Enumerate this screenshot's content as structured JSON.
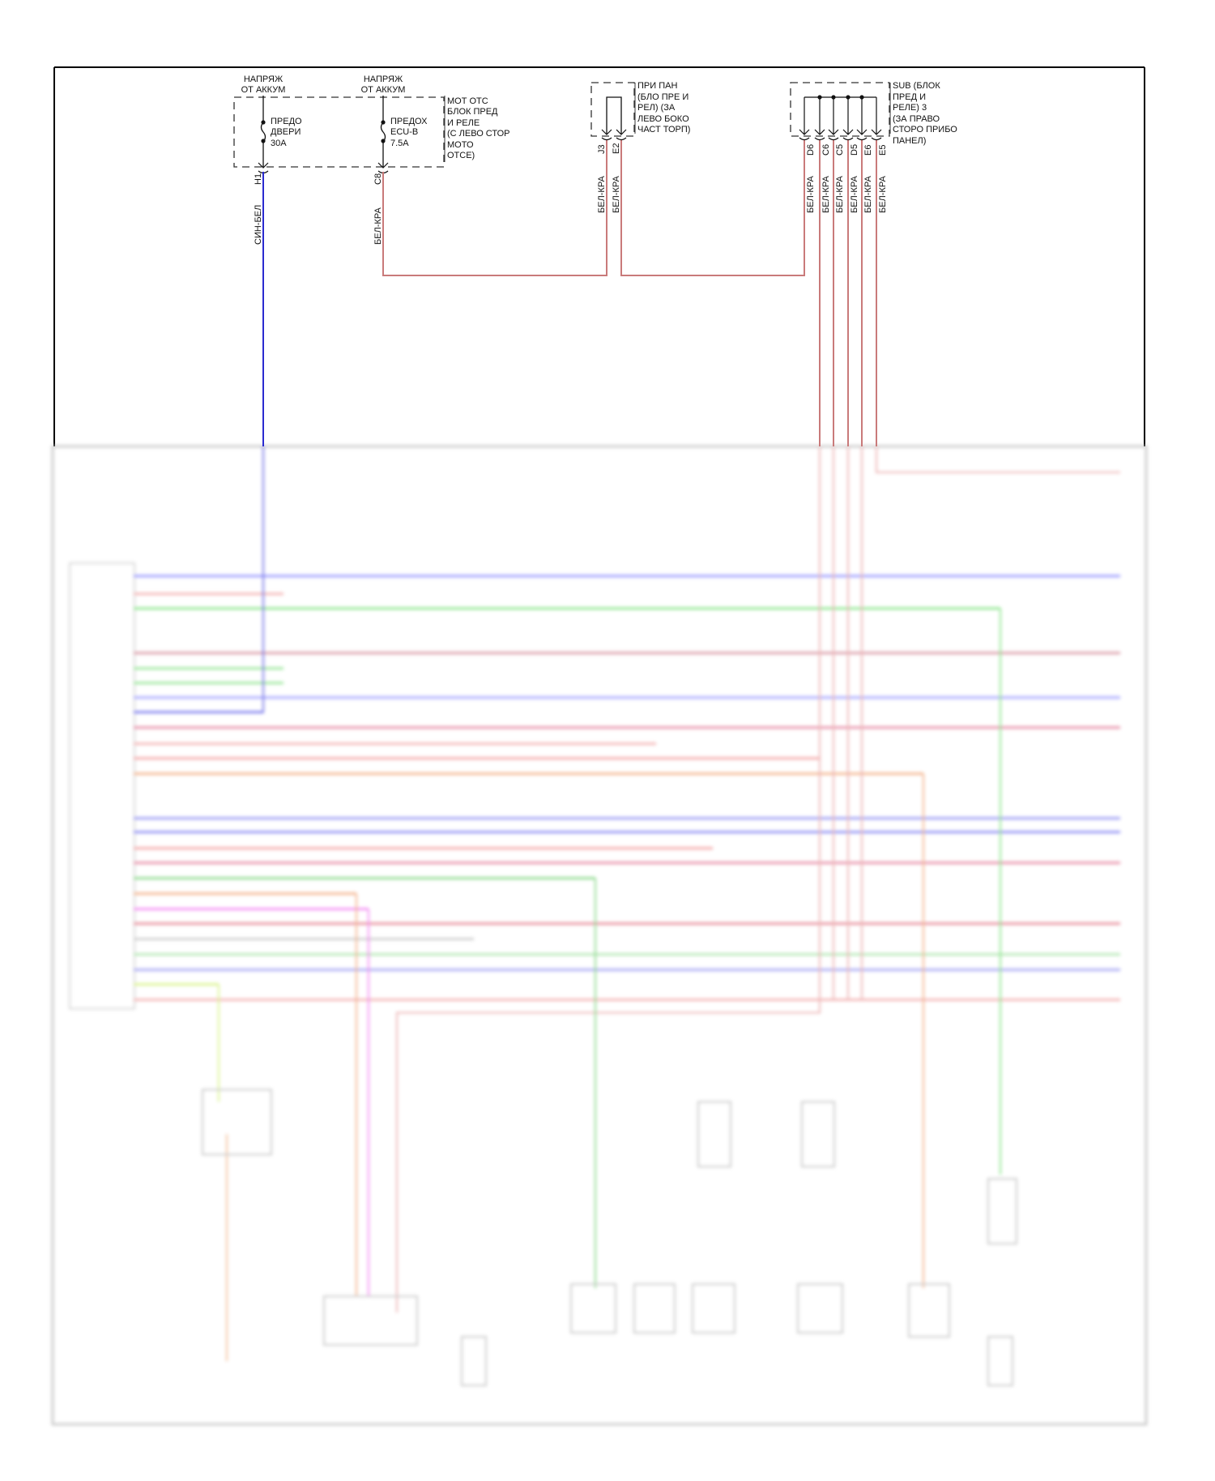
{
  "colors": {
    "frame": "#000000",
    "wire_blue_white": "#2a2ad0",
    "wire_white_red": "#c97a7a"
  },
  "engine_fuse_box": {
    "feed_labels": [
      [
        "НАПРЯЖ",
        "ОТ АККУМ"
      ],
      [
        "НАПРЯЖ",
        "ОТ АККУМ"
      ]
    ],
    "fuses": [
      {
        "lines": [
          "ПРЕДО",
          "ДВЕРИ",
          "30A"
        ],
        "connector": "H1",
        "wire": "СИН-БЕЛ"
      },
      {
        "lines": [
          "ПРЕДОХ",
          "ECU-B",
          "7.5A"
        ],
        "connector": "C8",
        "wire": "БЕЛ-КРА"
      }
    ],
    "label": [
      "МОТ ОТС",
      "БЛОК ПРЕД",
      "И РЕЛЕ",
      "(С ЛЕВО СТОР",
      "МОТО",
      "ОТСЕ)"
    ]
  },
  "instrument_panel_box": {
    "label": [
      "ПРИ ПАН",
      "(БЛО ПРЕ И",
      "РЕЛ) (ЗА",
      "ЛЕВО БОКО",
      "ЧАСТ ТОРП)"
    ],
    "pins": [
      {
        "connector": "J3",
        "wire": "БЕЛ-КРА"
      },
      {
        "connector": "E2",
        "wire": "БЕЛ-КРА"
      }
    ]
  },
  "sub_relay_box": {
    "label": [
      "SUB (БЛОК",
      "ПРЕД И",
      "РЕЛЕ) 3",
      "(ЗА ПРАВО",
      "СТОРО ПРИБО",
      "ПАНЕЛ)"
    ],
    "pins": [
      {
        "connector": "D6",
        "wire": "БЕЛ-КРА"
      },
      {
        "connector": "C6",
        "wire": "БЕЛ-КРА"
      },
      {
        "connector": "C5",
        "wire": "БЕЛ-КРА"
      },
      {
        "connector": "D5",
        "wire": "БЕЛ-КРА"
      },
      {
        "connector": "E6",
        "wire": "БЕЛ-КРА"
      },
      {
        "connector": "E5",
        "wire": "БЕЛ-КРА"
      }
    ]
  },
  "blurred_wires": [
    "#8080ff",
    "#f0a0a0",
    "#70e070",
    "#d08090",
    "#80e080",
    "#80e080",
    "#9090ff",
    "#7070ff",
    "#e07090",
    "#f0a0a0",
    "#f09090",
    "#f0a070",
    "#8080f0",
    "#7070f0",
    "#f09090",
    "#e07090",
    "#70d070",
    "#f0a070",
    "#f070f0",
    "#e07080",
    "#c0c0c0",
    "#a0e0a0",
    "#9090f0",
    "#d0f070",
    "#f0a0a0"
  ]
}
